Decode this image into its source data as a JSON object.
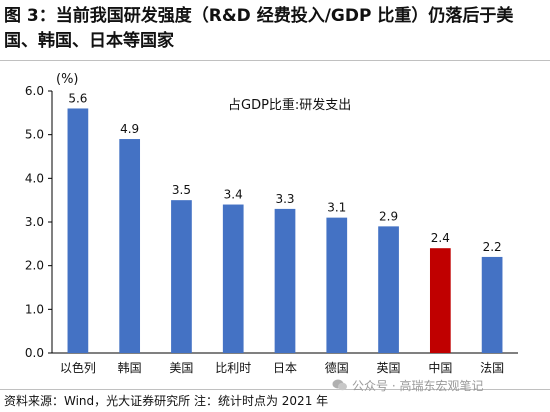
{
  "title": "图 3：当前我国研发强度（R&D 经费投入/GDP 比重）仍落后于美国、韩国、日本等国家",
  "footer": "资料来源：Wind，光大证券研究所 注：统计时点为 2021 年",
  "watermark": "公众号 · 高瑞东宏观笔记",
  "chart_data": {
    "type": "bar",
    "title": "占GDP比重:研发支出",
    "ylabel": "(%)",
    "xlabel": "",
    "ylim": [
      0,
      6
    ],
    "yticks": [
      "0.0",
      "1.0",
      "2.0",
      "3.0",
      "4.0",
      "5.0",
      "6.0"
    ],
    "grid": false,
    "categories": [
      "以色列",
      "韩国",
      "美国",
      "比利时",
      "日本",
      "德国",
      "英国",
      "中国",
      "法国"
    ],
    "values": [
      5.6,
      4.9,
      3.5,
      3.4,
      3.3,
      3.1,
      2.9,
      2.4,
      2.2
    ],
    "data_labels": [
      "5.6",
      "4.9",
      "3.5",
      "3.4",
      "3.3",
      "3.1",
      "2.9",
      "2.4",
      "2.2"
    ],
    "colors": [
      "#4472c4",
      "#4472c4",
      "#4472c4",
      "#4472c4",
      "#4472c4",
      "#4472c4",
      "#4472c4",
      "#c00000",
      "#4472c4"
    ]
  }
}
